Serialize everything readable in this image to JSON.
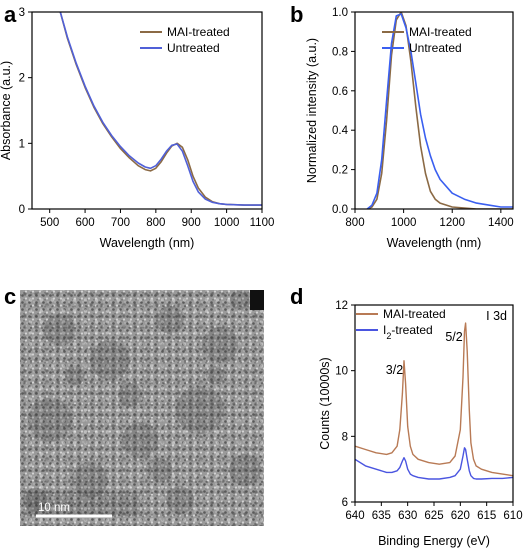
{
  "panel_labels": [
    "a",
    "b",
    "c",
    "d"
  ],
  "tem": {
    "scale_bar_label": "10 nm"
  },
  "chart_data": [
    {
      "panel": "a",
      "type": "line",
      "xlabel": "Wavelength (nm)",
      "ylabel": "Absorbance (a.u.)",
      "xlim": [
        450,
        1100
      ],
      "ylim": [
        0,
        3
      ],
      "xticks": [
        500,
        600,
        700,
        800,
        900,
        1000,
        1100
      ],
      "yticks": [
        0,
        1,
        2,
        3
      ],
      "legend_position": "top-right",
      "series": [
        {
          "name": "MAI-treated",
          "color": "#8b6a45",
          "x": [
            530,
            550,
            575,
            600,
            625,
            650,
            675,
            700,
            725,
            750,
            770,
            785,
            800,
            815,
            830,
            845,
            860,
            875,
            890,
            905,
            920,
            940,
            960,
            980,
            1000,
            1050,
            1100
          ],
          "y": [
            3.0,
            2.6,
            2.2,
            1.85,
            1.55,
            1.3,
            1.1,
            0.92,
            0.78,
            0.66,
            0.6,
            0.58,
            0.62,
            0.72,
            0.85,
            0.96,
            1.0,
            0.94,
            0.75,
            0.5,
            0.32,
            0.18,
            0.11,
            0.08,
            0.07,
            0.06,
            0.06
          ]
        },
        {
          "name": "Untreated",
          "color": "#5060d8",
          "x": [
            530,
            550,
            575,
            600,
            625,
            650,
            675,
            700,
            725,
            750,
            770,
            785,
            800,
            815,
            830,
            845,
            860,
            875,
            890,
            905,
            920,
            940,
            960,
            980,
            1000,
            1050,
            1100
          ],
          "y": [
            3.0,
            2.62,
            2.22,
            1.87,
            1.57,
            1.32,
            1.12,
            0.95,
            0.81,
            0.7,
            0.64,
            0.62,
            0.66,
            0.76,
            0.88,
            0.97,
            0.99,
            0.88,
            0.66,
            0.42,
            0.26,
            0.15,
            0.1,
            0.08,
            0.07,
            0.06,
            0.06
          ]
        }
      ]
    },
    {
      "panel": "b",
      "type": "line",
      "xlabel": "Wavelength (nm)",
      "ylabel": "Normalized intensity (a.u.)",
      "xlim": [
        800,
        1450
      ],
      "ylim": [
        0,
        1.0
      ],
      "xticks": [
        800,
        1000,
        1200,
        1400
      ],
      "yticks": [
        0.0,
        0.2,
        0.4,
        0.6,
        0.8,
        1.0
      ],
      "legend_position": "top-right",
      "series": [
        {
          "name": "MAI-treated",
          "color": "#8b6a45",
          "x": [
            850,
            870,
            890,
            910,
            930,
            950,
            970,
            990,
            1010,
            1030,
            1050,
            1070,
            1090,
            1110,
            1130,
            1150,
            1200,
            1300,
            1450
          ],
          "y": [
            0.0,
            0.01,
            0.05,
            0.18,
            0.45,
            0.78,
            0.96,
            1.0,
            0.93,
            0.75,
            0.52,
            0.32,
            0.18,
            0.09,
            0.05,
            0.03,
            0.01,
            0.0,
            0.0
          ]
        },
        {
          "name": "Untreated",
          "color": "#3a5ff0",
          "x": [
            850,
            870,
            890,
            910,
            930,
            950,
            970,
            990,
            1010,
            1030,
            1050,
            1070,
            1090,
            1110,
            1130,
            1150,
            1200,
            1250,
            1300,
            1350,
            1400,
            1450
          ],
          "y": [
            0.0,
            0.02,
            0.08,
            0.25,
            0.55,
            0.84,
            0.98,
            0.99,
            0.92,
            0.8,
            0.64,
            0.48,
            0.36,
            0.27,
            0.2,
            0.15,
            0.08,
            0.05,
            0.03,
            0.02,
            0.01,
            0.01
          ]
        }
      ]
    },
    {
      "panel": "d",
      "type": "line",
      "xlabel": "Binding Energy (eV)",
      "ylabel": "Counts (10000s)",
      "xlim": [
        640,
        610
      ],
      "ylim": [
        6,
        12
      ],
      "xticks": [
        640,
        635,
        630,
        625,
        620,
        615,
        610
      ],
      "yticks": [
        6,
        8,
        10,
        12
      ],
      "legend_position": "top-left",
      "corner_label": "I 3d",
      "annotations": [
        {
          "text": "3/2",
          "x": 632.5,
          "y": 9.9
        },
        {
          "text": "5/2",
          "x": 621.2,
          "y": 10.9
        }
      ],
      "series": [
        {
          "name": "MAI-treated",
          "color": "#b87a55",
          "x": [
            640,
            638,
            636,
            634,
            633,
            632,
            631.5,
            631,
            630.7,
            630.4,
            630,
            629.5,
            629,
            628,
            626,
            624,
            622,
            621,
            620,
            619.5,
            619.2,
            619,
            618.7,
            618.3,
            618,
            617.5,
            617,
            616,
            614,
            612,
            610
          ],
          "y": [
            7.7,
            7.6,
            7.5,
            7.45,
            7.5,
            7.7,
            8.2,
            9.3,
            10.3,
            9.6,
            8.3,
            7.7,
            7.45,
            7.3,
            7.2,
            7.15,
            7.2,
            7.4,
            8.2,
            9.8,
            11.2,
            11.45,
            10.6,
            8.8,
            7.8,
            7.3,
            7.1,
            7.0,
            6.9,
            6.85,
            6.8
          ]
        },
        {
          "name": "I2-treated",
          "legend_name": "I",
          "legend_sub": "2",
          "legend_tail": "-treated",
          "color": "#4a55e0",
          "x": [
            640,
            638,
            636,
            634,
            633,
            632,
            631.5,
            631,
            630.7,
            630.4,
            630,
            629.5,
            629,
            628,
            626,
            624,
            622,
            621,
            620,
            619.5,
            619.2,
            619,
            618.7,
            618.3,
            618,
            617.5,
            617,
            616,
            614,
            612,
            610
          ],
          "y": [
            7.3,
            7.1,
            7.0,
            6.9,
            6.9,
            6.95,
            7.05,
            7.25,
            7.35,
            7.25,
            7.0,
            6.85,
            6.8,
            6.75,
            6.7,
            6.7,
            6.75,
            6.8,
            7.0,
            7.4,
            7.65,
            7.6,
            7.3,
            6.95,
            6.8,
            6.72,
            6.7,
            6.7,
            6.72,
            6.72,
            6.75
          ]
        }
      ]
    }
  ]
}
